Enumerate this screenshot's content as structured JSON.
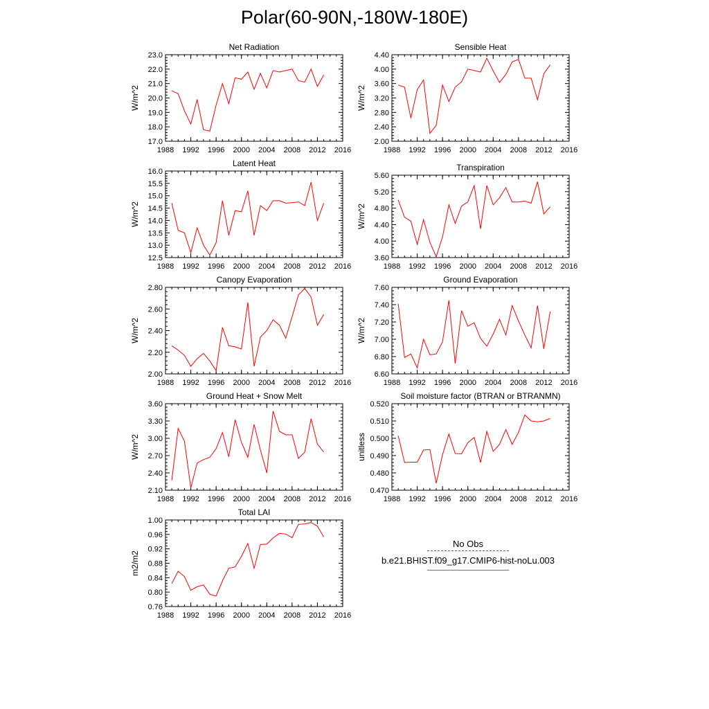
{
  "page": {
    "title": "Polar(60-90N,-180W-180E)"
  },
  "legend": {
    "obs_label": "No Obs",
    "model_label": "b.e21.BHIST.f09_g17.CMIP6-hist-noLu.003",
    "obs_color": "#5a5aa0",
    "model_color": "#ff0000"
  },
  "chart_data": [
    {
      "type": "line",
      "title": "Net Radiation",
      "ylabel": "W/m^2",
      "xlim": [
        1988,
        2016
      ],
      "ylim": [
        17.0,
        23.0
      ],
      "xticks": [
        "1988",
        "1992",
        "1996",
        "2000",
        "2004",
        "2008",
        "2012",
        "2016"
      ],
      "yticks": [
        "17.0",
        "18.0",
        "19.0",
        "20.0",
        "21.0",
        "22.0",
        "23.0"
      ],
      "x": [
        1989,
        1990,
        1991,
        1992,
        1993,
        1994,
        1995,
        1996,
        1997,
        1998,
        1999,
        2000,
        2001,
        2002,
        2003,
        2004,
        2005,
        2006,
        2007,
        2008,
        2009,
        2010,
        2011,
        2012,
        2013
      ],
      "series": [
        {
          "name": "b.e21.BHIST.f09_g17.CMIP6-hist-noLu.003",
          "values": [
            20.5,
            20.3,
            19.1,
            18.2,
            19.9,
            17.8,
            17.7,
            19.5,
            21.0,
            19.6,
            21.4,
            21.3,
            21.8,
            20.6,
            21.7,
            20.7,
            21.9,
            21.8,
            21.9,
            22.0,
            21.2,
            21.1,
            22.0,
            20.8,
            21.6
          ]
        }
      ]
    },
    {
      "type": "line",
      "title": "Sensible Heat",
      "ylabel": "W/m^2",
      "xlim": [
        1988,
        2016
      ],
      "ylim": [
        2.0,
        4.4
      ],
      "xticks": [
        "1988",
        "1992",
        "1996",
        "2000",
        "2004",
        "2008",
        "2012",
        "2016"
      ],
      "yticks": [
        "2.00",
        "2.40",
        "2.80",
        "3.20",
        "3.60",
        "4.00",
        "4.40"
      ],
      "x": [
        1989,
        1990,
        1991,
        1992,
        1993,
        1994,
        1995,
        1996,
        1997,
        1998,
        1999,
        2000,
        2001,
        2002,
        2003,
        2004,
        2005,
        2006,
        2007,
        2008,
        2009,
        2010,
        2011,
        2012,
        2013
      ],
      "series": [
        {
          "name": "b.e21.BHIST.f09_g17.CMIP6-hist-noLu.003",
          "values": [
            3.56,
            3.5,
            2.64,
            3.43,
            3.7,
            2.22,
            2.44,
            3.56,
            3.1,
            3.5,
            3.65,
            4.0,
            3.96,
            3.92,
            4.3,
            3.95,
            3.63,
            3.85,
            4.2,
            4.27,
            3.75,
            3.75,
            3.15,
            3.87,
            4.12
          ]
        }
      ]
    },
    {
      "type": "line",
      "title": "Latent Heat",
      "ylabel": "W/m^2",
      "xlim": [
        1988,
        2016
      ],
      "ylim": [
        12.5,
        16.0
      ],
      "xticks": [
        "1988",
        "1992",
        "1996",
        "2000",
        "2004",
        "2008",
        "2012",
        "2016"
      ],
      "yticks": [
        "12.5",
        "13.0",
        "13.5",
        "14.0",
        "14.5",
        "15.0",
        "15.5",
        "16.0"
      ],
      "x": [
        1989,
        1990,
        1991,
        1992,
        1993,
        1994,
        1995,
        1996,
        1997,
        1998,
        1999,
        2000,
        2001,
        2002,
        2003,
        2004,
        2005,
        2006,
        2007,
        2008,
        2009,
        2010,
        2011,
        2012,
        2013
      ],
      "series": [
        {
          "name": "b.e21.BHIST.f09_g17.CMIP6-hist-noLu.003",
          "values": [
            14.7,
            13.6,
            13.5,
            12.7,
            13.7,
            13.0,
            12.6,
            13.1,
            14.8,
            13.4,
            14.4,
            14.35,
            15.2,
            13.4,
            14.6,
            14.4,
            14.8,
            14.8,
            14.7,
            14.72,
            14.75,
            14.6,
            15.55,
            14.0,
            14.7
          ]
        }
      ]
    },
    {
      "type": "line",
      "title": "Transpiration",
      "ylabel": "W/m^2",
      "xlim": [
        1988,
        2016
      ],
      "ylim": [
        3.6,
        5.6
      ],
      "xticks": [
        "1988",
        "1992",
        "1996",
        "2000",
        "2004",
        "2008",
        "2012",
        "2016"
      ],
      "yticks": [
        "3.60",
        "4.00",
        "4.40",
        "4.80",
        "5.20",
        "5.60"
      ],
      "x": [
        1989,
        1990,
        1991,
        1992,
        1993,
        1994,
        1995,
        1996,
        1997,
        1998,
        1999,
        2000,
        2001,
        2002,
        2003,
        2004,
        2005,
        2006,
        2007,
        2008,
        2009,
        2010,
        2011,
        2012,
        2013
      ],
      "series": [
        {
          "name": "b.e21.BHIST.f09_g17.CMIP6-hist-noLu.003",
          "values": [
            5.0,
            4.58,
            4.48,
            3.92,
            4.52,
            3.97,
            3.62,
            4.1,
            4.88,
            4.43,
            4.85,
            4.95,
            5.35,
            4.3,
            5.35,
            4.88,
            5.05,
            5.3,
            4.95,
            4.95,
            4.97,
            4.92,
            5.44,
            4.66,
            4.83
          ]
        }
      ]
    },
    {
      "type": "line",
      "title": "Canopy Evaporation",
      "ylabel": "W/m^2",
      "xlim": [
        1988,
        2016
      ],
      "ylim": [
        2.0,
        2.8
      ],
      "xticks": [
        "1988",
        "1992",
        "1996",
        "2000",
        "2004",
        "2008",
        "2012",
        "2016"
      ],
      "yticks": [
        "2.00",
        "2.20",
        "2.40",
        "2.60",
        "2.80"
      ],
      "x": [
        1989,
        1990,
        1991,
        1992,
        1993,
        1994,
        1995,
        1996,
        1997,
        1998,
        1999,
        2000,
        2001,
        2002,
        2003,
        2004,
        2005,
        2006,
        2007,
        2008,
        2009,
        2010,
        2011,
        2012,
        2013
      ],
      "series": [
        {
          "name": "b.e21.BHIST.f09_g17.CMIP6-hist-noLu.003",
          "values": [
            2.26,
            2.22,
            2.17,
            2.07,
            2.14,
            2.19,
            2.12,
            2.03,
            2.43,
            2.26,
            2.25,
            2.23,
            2.66,
            2.07,
            2.34,
            2.4,
            2.5,
            2.45,
            2.33,
            2.53,
            2.73,
            2.79,
            2.71,
            2.45,
            2.55
          ]
        }
      ]
    },
    {
      "type": "line",
      "title": "Ground Evaporation",
      "ylabel": "W/m^2",
      "xlim": [
        1988,
        2016
      ],
      "ylim": [
        6.6,
        7.6
      ],
      "xticks": [
        "1988",
        "1992",
        "1996",
        "2000",
        "2004",
        "2008",
        "2012",
        "2016"
      ],
      "yticks": [
        "6.60",
        "6.80",
        "7.00",
        "7.20",
        "7.40",
        "7.60"
      ],
      "x": [
        1989,
        1990,
        1991,
        1992,
        1993,
        1994,
        1995,
        1996,
        1997,
        1998,
        1999,
        2000,
        2001,
        2002,
        2003,
        2004,
        2005,
        2006,
        2007,
        2008,
        2009,
        2010,
        2011,
        2012,
        2013
      ],
      "series": [
        {
          "name": "b.e21.BHIST.f09_g17.CMIP6-hist-noLu.003",
          "values": [
            7.41,
            6.79,
            6.83,
            6.67,
            7.0,
            6.82,
            6.83,
            6.97,
            7.45,
            6.72,
            7.33,
            7.15,
            7.19,
            7.01,
            6.92,
            7.06,
            7.23,
            7.05,
            7.39,
            7.21,
            7.05,
            6.9,
            7.39,
            6.89,
            7.32
          ]
        }
      ]
    },
    {
      "type": "line",
      "title": "Ground Heat + Snow Melt",
      "ylabel": "W/m^2",
      "xlim": [
        1988,
        2016
      ],
      "ylim": [
        2.1,
        3.6
      ],
      "xticks": [
        "1988",
        "1992",
        "1996",
        "2000",
        "2004",
        "2008",
        "2012",
        "2016"
      ],
      "yticks": [
        "2.10",
        "2.40",
        "2.70",
        "3.00",
        "3.30",
        "3.60"
      ],
      "x": [
        1989,
        1990,
        1991,
        1992,
        1993,
        1994,
        1995,
        1996,
        1997,
        1998,
        1999,
        2000,
        2001,
        2002,
        2003,
        2004,
        2005,
        2006,
        2007,
        2008,
        2009,
        2010,
        2011,
        2012,
        2013
      ],
      "series": [
        {
          "name": "b.e21.BHIST.f09_g17.CMIP6-hist-noLu.003",
          "values": [
            2.27,
            3.17,
            2.95,
            2.14,
            2.57,
            2.63,
            2.67,
            2.82,
            3.1,
            2.68,
            3.32,
            2.93,
            2.67,
            3.24,
            2.8,
            2.4,
            3.47,
            3.12,
            3.06,
            3.06,
            2.65,
            2.76,
            3.34,
            2.9,
            2.76
          ]
        }
      ]
    },
    {
      "type": "line",
      "title": "Soil moisture factor (BTRAN or BTRANMN)",
      "ylabel": "unitless",
      "xlim": [
        1988,
        2016
      ],
      "ylim": [
        0.47,
        0.52
      ],
      "xticks": [
        "1988",
        "1992",
        "1996",
        "2000",
        "2004",
        "2008",
        "2012",
        "2016"
      ],
      "yticks": [
        "0.470",
        "0.480",
        "0.490",
        "0.500",
        "0.510",
        "0.520"
      ],
      "x": [
        1989,
        1990,
        1991,
        1992,
        1993,
        1994,
        1995,
        1996,
        1997,
        1998,
        1999,
        2000,
        2001,
        2002,
        2003,
        2004,
        2005,
        2006,
        2007,
        2008,
        2009,
        2010,
        2011,
        2012,
        2013
      ],
      "series": [
        {
          "name": "b.e21.BHIST.f09_g17.CMIP6-hist-noLu.003",
          "values": [
            0.5015,
            0.486,
            0.4862,
            0.4862,
            0.4932,
            0.4935,
            0.474,
            0.4905,
            0.5025,
            0.4912,
            0.491,
            0.4975,
            0.5005,
            0.486,
            0.504,
            0.4925,
            0.4965,
            0.505,
            0.4965,
            0.5035,
            0.5135,
            0.51,
            0.5095,
            0.51,
            0.5115
          ]
        }
      ]
    },
    {
      "type": "line",
      "title": "Total LAI",
      "ylabel": "m2/m2",
      "xlim": [
        1988,
        2016
      ],
      "ylim": [
        0.76,
        1.0
      ],
      "xticks": [
        "1988",
        "1992",
        "1996",
        "2000",
        "2004",
        "2008",
        "2012",
        "2016"
      ],
      "yticks": [
        "0.76",
        "0.80",
        "0.84",
        "0.88",
        "0.92",
        "0.96",
        "1.00"
      ],
      "x": [
        1989,
        1990,
        1991,
        1992,
        1993,
        1994,
        1995,
        1996,
        1997,
        1998,
        1999,
        2000,
        2001,
        2002,
        2003,
        2004,
        2005,
        2006,
        2007,
        2008,
        2009,
        2010,
        2011,
        2012,
        2013
      ],
      "series": [
        {
          "name": "b.e21.BHIST.f09_g17.CMIP6-hist-noLu.003",
          "values": [
            0.824,
            0.858,
            0.843,
            0.805,
            0.815,
            0.82,
            0.794,
            0.789,
            0.831,
            0.866,
            0.87,
            0.899,
            0.935,
            0.866,
            0.932,
            0.933,
            0.95,
            0.963,
            0.961,
            0.951,
            0.988,
            0.989,
            0.993,
            0.983,
            0.953
          ]
        }
      ]
    }
  ]
}
